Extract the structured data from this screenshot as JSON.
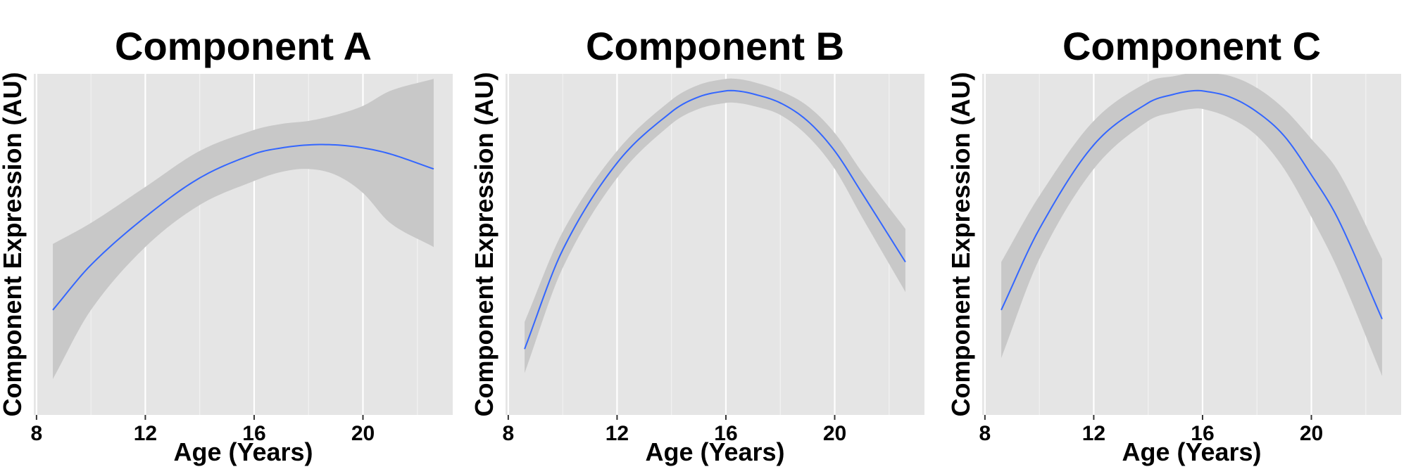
{
  "chart_data": [
    {
      "type": "line",
      "title": "Component A",
      "xlabel": "Age (Years)",
      "ylabel": "Component Expression (AU)",
      "xlim": [
        7.9,
        23.3
      ],
      "ylim": [
        0,
        1
      ],
      "xticks": [
        8,
        12,
        16,
        20
      ],
      "grid": true,
      "x": [
        8.6,
        10,
        12,
        14,
        16,
        17,
        18,
        19,
        20,
        21,
        22.6
      ],
      "y": [
        0.27,
        0.42,
        0.58,
        0.71,
        0.79,
        0.81,
        0.82,
        0.82,
        0.81,
        0.79,
        0.74
      ],
      "lower": [
        0.04,
        0.27,
        0.48,
        0.62,
        0.7,
        0.73,
        0.74,
        0.72,
        0.66,
        0.56,
        0.48
      ],
      "upper": [
        0.49,
        0.56,
        0.68,
        0.8,
        0.87,
        0.89,
        0.9,
        0.92,
        0.95,
        1.0,
        1.04
      ]
    },
    {
      "type": "line",
      "title": "Component B",
      "xlabel": "Age (Years)",
      "ylabel": "Component Expression (AU)",
      "xlim": [
        7.9,
        23.3
      ],
      "ylim": [
        0,
        1
      ],
      "xticks": [
        8,
        12,
        16,
        20
      ],
      "grid": true,
      "x": [
        8.6,
        10,
        12,
        14,
        15,
        16,
        16.4,
        17,
        18,
        19,
        20,
        21,
        22.6
      ],
      "y": [
        0.14,
        0.47,
        0.76,
        0.93,
        0.98,
        1.0,
        1.0,
        0.99,
        0.96,
        0.9,
        0.8,
        0.66,
        0.43
      ],
      "lower": [
        0.06,
        0.41,
        0.71,
        0.89,
        0.94,
        0.96,
        0.96,
        0.95,
        0.92,
        0.85,
        0.74,
        0.58,
        0.33
      ],
      "upper": [
        0.23,
        0.53,
        0.8,
        0.97,
        1.02,
        1.04,
        1.04,
        1.03,
        1.0,
        0.95,
        0.86,
        0.73,
        0.54
      ]
    },
    {
      "type": "line",
      "title": "Component C",
      "xlabel": "Age (Years)",
      "ylabel": "Component Expression (AU)",
      "xlim": [
        7.9,
        23.3
      ],
      "ylim": [
        0,
        1
      ],
      "xticks": [
        8,
        12,
        16,
        20
      ],
      "grid": true,
      "x": [
        8.6,
        10,
        12,
        14,
        15,
        15.6,
        16,
        17,
        18,
        19,
        20,
        21,
        22.6
      ],
      "y": [
        0.27,
        0.54,
        0.82,
        0.96,
        0.99,
        1.0,
        1.0,
        0.98,
        0.93,
        0.85,
        0.72,
        0.57,
        0.24
      ],
      "lower": [
        0.11,
        0.44,
        0.74,
        0.9,
        0.93,
        0.94,
        0.94,
        0.91,
        0.85,
        0.74,
        0.58,
        0.4,
        0.05
      ],
      "upper": [
        0.43,
        0.65,
        0.9,
        1.03,
        1.05,
        1.06,
        1.06,
        1.05,
        1.01,
        0.94,
        0.84,
        0.73,
        0.44
      ]
    }
  ],
  "colors": {
    "panel_bg": "#e5e5e5",
    "grid_major": "#ffffff",
    "grid_minor": "#f2f2f2",
    "ribbon": "#c8c8c8",
    "line": "#3366ff",
    "text": "#000000"
  }
}
